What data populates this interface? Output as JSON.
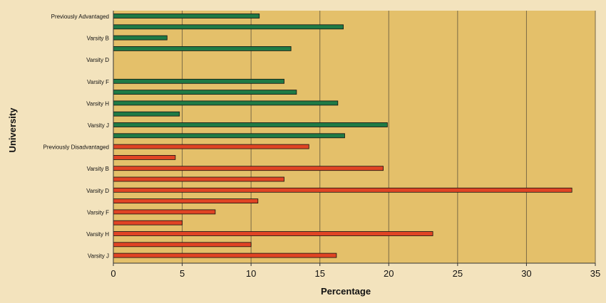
{
  "chart_data": {
    "type": "bar",
    "orientation": "horizontal",
    "xlabel": "Percentage",
    "ylabel": "University",
    "xlim": [
      0,
      35
    ],
    "xticks": [
      0,
      5,
      10,
      15,
      20,
      25,
      30,
      35
    ],
    "grid": "vertical",
    "legend": "none",
    "colors": {
      "plot_background": "#e4c06a",
      "page_background": "#f3e3bd",
      "advantaged_bar": "#1f7a45",
      "disadvantaged_bar": "#e04424",
      "grid": "#7a6a45"
    },
    "bars": [
      {
        "label": "Previously Advantaged",
        "value": 10.6,
        "group": "advantaged"
      },
      {
        "label": "",
        "value": 16.7,
        "group": "advantaged"
      },
      {
        "label": "Varsity B",
        "value": 3.9,
        "group": "advantaged"
      },
      {
        "label": "",
        "value": 12.9,
        "group": "advantaged"
      },
      {
        "label": "Varsity D",
        "value": 0,
        "group": "advantaged"
      },
      {
        "label": "",
        "value": 0,
        "group": "advantaged"
      },
      {
        "label": "Varsity F",
        "value": 12.4,
        "group": "advantaged"
      },
      {
        "label": "",
        "value": 13.3,
        "group": "advantaged"
      },
      {
        "label": "Varsity H",
        "value": 16.3,
        "group": "advantaged"
      },
      {
        "label": "",
        "value": 4.8,
        "group": "advantaged"
      },
      {
        "label": "Varsity J",
        "value": 19.9,
        "group": "advantaged"
      },
      {
        "label": "",
        "value": 16.8,
        "group": "advantaged"
      },
      {
        "label": "Previously Disadvantaged",
        "value": 14.2,
        "group": "disadvantaged"
      },
      {
        "label": "",
        "value": 4.5,
        "group": "disadvantaged"
      },
      {
        "label": "Varsity B",
        "value": 19.6,
        "group": "disadvantaged"
      },
      {
        "label": "",
        "value": 12.4,
        "group": "disadvantaged"
      },
      {
        "label": "Varsity D",
        "value": 33.3,
        "group": "disadvantaged"
      },
      {
        "label": "",
        "value": 10.5,
        "group": "disadvantaged"
      },
      {
        "label": "Varsity F",
        "value": 7.4,
        "group": "disadvantaged"
      },
      {
        "label": "",
        "value": 5.0,
        "group": "disadvantaged"
      },
      {
        "label": "Varsity H",
        "value": 23.2,
        "group": "disadvantaged"
      },
      {
        "label": "",
        "value": 10.0,
        "group": "disadvantaged"
      },
      {
        "label": "Varsity J",
        "value": 16.2,
        "group": "disadvantaged"
      }
    ]
  }
}
